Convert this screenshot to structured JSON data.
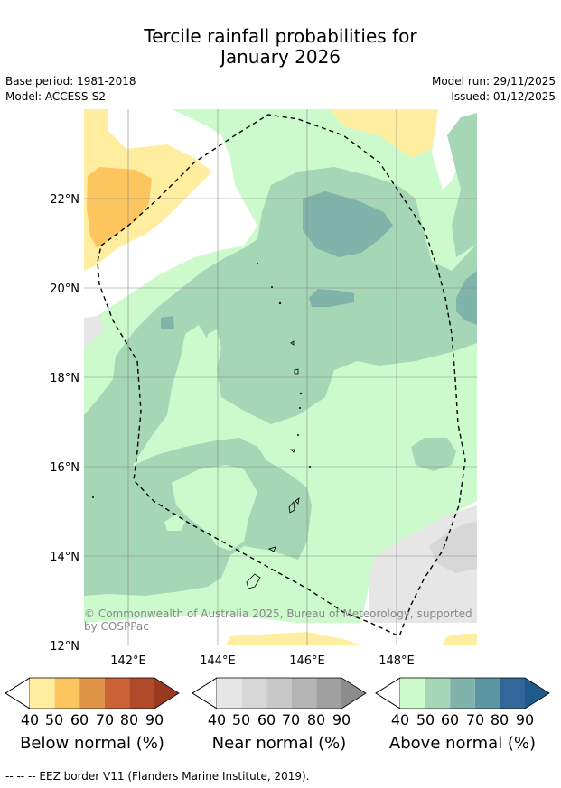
{
  "title_line1": "Tercile rainfall probabilities for",
  "title_line2": "January 2026",
  "base_period": "Base period: 1981-2018",
  "model": "Model: ACCESS-S2",
  "model_run": "Model run: 29/11/2025",
  "issued": "Issued: 01/12/2025",
  "lat_labels": [
    "22°N",
    "20°N",
    "18°N",
    "16°N",
    "14°N",
    "12°N"
  ],
  "lon_labels": [
    "142°E",
    "144°E",
    "146°E",
    "148°E"
  ],
  "copyright_line1": "© Commonwealth of Australia 2025, Bureau of Meteorology, supported",
  "copyright_line2": "by COSPPac",
  "colorbars": [
    {
      "title": "Below normal (%)",
      "ticks": [
        "40",
        "50",
        "60",
        "70",
        "80",
        "90"
      ],
      "colors": [
        "#ffeea0",
        "#fdc55d",
        "#e09445",
        "#cd6236",
        "#b04a2a",
        "#993a1f"
      ]
    },
    {
      "title": "Near normal (%)",
      "ticks": [
        "40",
        "50",
        "60",
        "70",
        "80",
        "90"
      ],
      "colors": [
        "#e6e6e6",
        "#d7d7d7",
        "#c8c8c8",
        "#b4b4b4",
        "#a0a0a0",
        "#8c8c8c"
      ]
    },
    {
      "title": "Above normal (%)",
      "ticks": [
        "40",
        "50",
        "60",
        "70",
        "80",
        "90"
      ],
      "colors": [
        "#ccfacc",
        "#a5d6b5",
        "#80b3aa",
        "#5c96a2",
        "#336699",
        "#1f5a8c"
      ]
    }
  ],
  "footnote": "--  --  -- EEZ border V11 (Flanders Marine Institute, 2019)."
}
